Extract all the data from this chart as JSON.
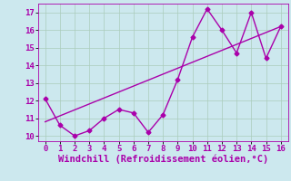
{
  "x": [
    0,
    1,
    2,
    3,
    4,
    5,
    6,
    7,
    8,
    9,
    10,
    11,
    12,
    13,
    14,
    15,
    16
  ],
  "y_line": [
    12.1,
    10.6,
    10.0,
    10.3,
    11.0,
    11.5,
    11.3,
    10.2,
    11.2,
    13.2,
    15.6,
    17.2,
    16.0,
    14.7,
    17.0,
    14.4,
    16.2
  ],
  "trend_x": [
    0,
    16
  ],
  "trend_y": [
    10.8,
    16.2
  ],
  "color": "#aa00aa",
  "bg_color": "#cce8ee",
  "grid_color": "#aaccbb",
  "xlabel": "Windchill (Refroidissement éolien,°C)",
  "ylim": [
    9.7,
    17.5
  ],
  "xlim": [
    -0.5,
    16.5
  ],
  "yticks": [
    10,
    11,
    12,
    13,
    14,
    15,
    16,
    17
  ],
  "xticks": [
    0,
    1,
    2,
    3,
    4,
    5,
    6,
    7,
    8,
    9,
    10,
    11,
    12,
    13,
    14,
    15,
    16
  ],
  "markersize": 2.5,
  "linewidth": 1.0,
  "xlabel_fontsize": 7.5,
  "tick_fontsize": 6.5
}
